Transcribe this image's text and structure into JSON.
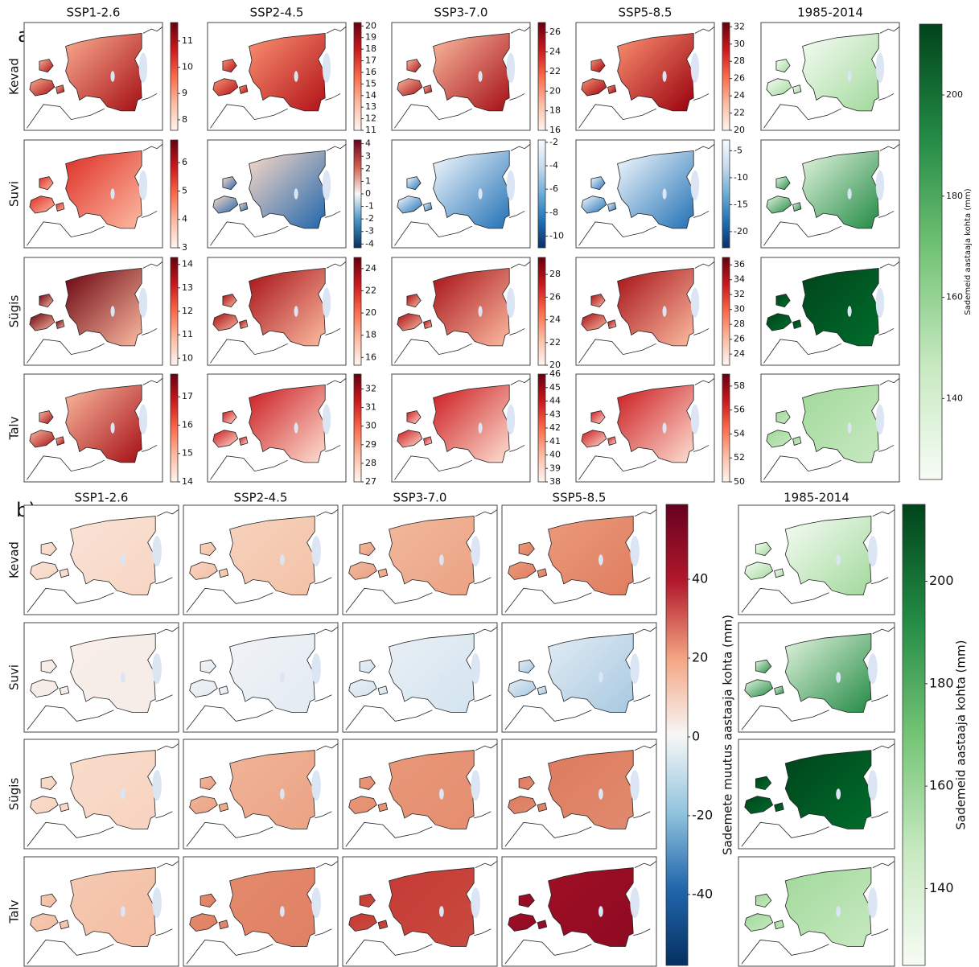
{
  "panel_a": {
    "label": "a)",
    "columns": [
      "SSP1-2.6",
      "SSP2-4.5",
      "SSP3-7.0",
      "SSP5-8.5",
      "1985-2014"
    ],
    "rows": [
      {
        "label": "Kevad",
        "maps": [
          {
            "fill": [
              "#fcae91",
              "#a50f15"
            ],
            "colorbar": {
              "lim": [
                7.6,
                11.7
              ],
              "ticks": [
                8,
                9,
                10,
                11
              ],
              "colors": [
                "#fff5f0",
                "#fcbba1",
                "#fb6a4a",
                "#cb181d",
                "#67000d"
              ]
            }
          },
          {
            "fill": [
              "#fc9272",
              "#b11218"
            ],
            "colorbar": {
              "lim": [
                11,
                20.3
              ],
              "ticks": [
                11,
                12,
                13,
                14,
                15,
                16,
                17,
                18,
                19,
                20
              ],
              "colors": [
                "#fff5f0",
                "#fcbba1",
                "#fb6a4a",
                "#cb181d",
                "#67000d"
              ]
            }
          },
          {
            "fill": [
              "#fcbba1",
              "#a50f15"
            ],
            "colorbar": {
              "lim": [
                16,
                27
              ],
              "ticks": [
                16,
                18,
                20,
                22,
                24,
                26
              ],
              "colors": [
                "#fff5f0",
                "#fcbba1",
                "#fb6a4a",
                "#cb181d",
                "#67000d"
              ]
            }
          },
          {
            "fill": [
              "#fc9272",
              "#99000d"
            ],
            "colorbar": {
              "lim": [
                20,
                32.5
              ],
              "ticks": [
                20,
                22,
                24,
                26,
                28,
                30,
                32
              ],
              "colors": [
                "#fff5f0",
                "#fcbba1",
                "#fb6a4a",
                "#cb181d",
                "#67000d"
              ]
            }
          },
          {
            "fill": [
              "#f7fcf5",
              "#a1d99b"
            ]
          }
        ]
      },
      {
        "label": "Suvi",
        "maps": [
          {
            "fill": [
              "#de2d26",
              "#fcbba1"
            ],
            "colorbar": {
              "lim": [
                3,
                6.8
              ],
              "ticks": [
                3,
                4,
                5,
                6
              ],
              "colors": [
                "#fff5f0",
                "#fcbba1",
                "#fb6a4a",
                "#cb181d",
                "#67000d"
              ]
            }
          },
          {
            "fill": [
              "#fddbc7",
              "#2166ac"
            ],
            "colorbar": {
              "lim": [
                -4.3,
                4.3
              ],
              "ticks": [
                -4,
                -3,
                -2,
                -1,
                0,
                1,
                2,
                3,
                4
              ],
              "colors": [
                "#053061",
                "#4393c3",
                "#f7f7f7",
                "#d6604d",
                "#67001f"
              ]
            }
          },
          {
            "fill": [
              "#f7fbff",
              "#2171b5"
            ],
            "colorbar": {
              "lim": [
                -11,
                -1.8
              ],
              "ticks": [
                -10,
                -8,
                -6,
                -4,
                -2
              ],
              "colors": [
                "#08306b",
                "#2171b5",
                "#6baed6",
                "#c6dbef",
                "#f7fbff"
              ]
            }
          },
          {
            "fill": [
              "#f7fbff",
              "#2171b5"
            ],
            "colorbar": {
              "lim": [
                -23,
                -3
              ],
              "ticks": [
                -20,
                -15,
                -10,
                -5
              ],
              "colors": [
                "#08306b",
                "#2171b5",
                "#6baed6",
                "#c6dbef",
                "#f7fbff"
              ]
            }
          },
          {
            "fill": [
              "#e5f5e0",
              "#238b45"
            ]
          }
        ]
      },
      {
        "label": "Sügis",
        "maps": [
          {
            "fill": [
              "#67000d",
              "#fcbba1"
            ],
            "colorbar": {
              "lim": [
                9.7,
                14.3
              ],
              "ticks": [
                10,
                11,
                12,
                13,
                14
              ],
              "colors": [
                "#fff5f0",
                "#fcbba1",
                "#fb6a4a",
                "#cb181d",
                "#67000d"
              ]
            }
          },
          {
            "fill": [
              "#a50f15",
              "#fcbba1"
            ],
            "colorbar": {
              "lim": [
                15.3,
                25
              ],
              "ticks": [
                16,
                18,
                20,
                22,
                24
              ],
              "colors": [
                "#fff5f0",
                "#fcbba1",
                "#fb6a4a",
                "#cb181d",
                "#67000d"
              ]
            }
          },
          {
            "fill": [
              "#a50f15",
              "#fcbba1"
            ],
            "colorbar": {
              "lim": [
                20,
                29.5
              ],
              "ticks": [
                20,
                22,
                24,
                26,
                28
              ],
              "colors": [
                "#fff5f0",
                "#fcbba1",
                "#fb6a4a",
                "#cb181d",
                "#67000d"
              ]
            }
          },
          {
            "fill": [
              "#a50f15",
              "#fcbba1"
            ],
            "colorbar": {
              "lim": [
                22.5,
                37
              ],
              "ticks": [
                24,
                26,
                28,
                30,
                32,
                34,
                36
              ],
              "colors": [
                "#fff5f0",
                "#fcbba1",
                "#fb6a4a",
                "#cb181d",
                "#67000d"
              ]
            }
          },
          {
            "fill": [
              "#00441b",
              "#006d2c"
            ]
          }
        ]
      },
      {
        "label": "Talv",
        "maps": [
          {
            "fill": [
              "#fcbba1",
              "#a50f15"
            ],
            "colorbar": {
              "lim": [
                14,
                17.8
              ],
              "ticks": [
                14,
                15,
                16,
                17
              ],
              "colors": [
                "#fff5f0",
                "#fcbba1",
                "#fb6a4a",
                "#cb181d",
                "#67000d"
              ]
            }
          },
          {
            "fill": [
              "#cb181d",
              "#fee0d2"
            ],
            "colorbar": {
              "lim": [
                27,
                32.8
              ],
              "ticks": [
                27,
                28,
                29,
                30,
                31,
                32
              ],
              "colors": [
                "#fff5f0",
                "#fcbba1",
                "#fb6a4a",
                "#cb181d",
                "#67000d"
              ]
            }
          },
          {
            "fill": [
              "#cb181d",
              "#fee0d2"
            ],
            "colorbar": {
              "lim": [
                38,
                46
              ],
              "ticks": [
                38,
                39,
                40,
                41,
                42,
                43,
                44,
                45,
                46
              ],
              "colors": [
                "#fff5f0",
                "#fcbba1",
                "#fb6a4a",
                "#cb181d",
                "#67000d"
              ]
            }
          },
          {
            "fill": [
              "#cb181d",
              "#fee0d2"
            ],
            "colorbar": {
              "lim": [
                50,
                59
              ],
              "ticks": [
                50,
                52,
                54,
                56,
                58
              ],
              "colors": [
                "#fff5f0",
                "#fcbba1",
                "#fb6a4a",
                "#cb181d",
                "#67000d"
              ]
            }
          },
          {
            "fill": [
              "#a1d99b",
              "#c7e9c0"
            ]
          }
        ]
      }
    ],
    "colorbar": {
      "label": "Sademeid aastaaja kohta (mm)",
      "lim": [
        124,
        214
      ],
      "ticks": [
        140,
        160,
        180,
        200
      ],
      "colors": [
        "#f7fcf5",
        "#c7e9c0",
        "#74c476",
        "#238b45",
        "#00441b"
      ]
    }
  },
  "panel_b": {
    "label": "b)",
    "columns": [
      "SSP1-2.6",
      "SSP2-4.5",
      "SSP3-7.0",
      "SSP5-8.5",
      "1985-2014"
    ],
    "rows": [
      {
        "label": "Kevad",
        "maps": [
          {
            "fill": [
              "#fae3d7",
              "#f7d5c2"
            ]
          },
          {
            "fill": [
              "#f7d2bd",
              "#f3c2a7"
            ]
          },
          {
            "fill": [
              "#f2b89b",
              "#eba283"
            ]
          },
          {
            "fill": [
              "#eb9a7b",
              "#e07d60"
            ]
          },
          {
            "fill": [
              "#f7fcf5",
              "#a1d99b"
            ]
          }
        ]
      },
      {
        "label": "Suvi",
        "maps": [
          {
            "fill": [
              "#faefe9",
              "#f5ece8"
            ]
          },
          {
            "fill": [
              "#f1f3f6",
              "#e2ebf3"
            ]
          },
          {
            "fill": [
              "#e9eff5",
              "#d3e4ef"
            ]
          },
          {
            "fill": [
              "#e3ecf4",
              "#a6c9e1"
            ]
          },
          {
            "fill": [
              "#e5f5e0",
              "#238b45"
            ]
          }
        ]
      },
      {
        "label": "Sügis",
        "maps": [
          {
            "fill": [
              "#f9dccb",
              "#f7d3c0"
            ]
          },
          {
            "fill": [
              "#f0b397",
              "#eba385"
            ]
          },
          {
            "fill": [
              "#e89878",
              "#e58d70"
            ]
          },
          {
            "fill": [
              "#de7b60",
              "#e08a6d"
            ]
          },
          {
            "fill": [
              "#00441b",
              "#006d2c"
            ]
          }
        ]
      },
      {
        "label": "Talv",
        "maps": [
          {
            "fill": [
              "#f6c9b1",
              "#f3bea4"
            ]
          },
          {
            "fill": [
              "#e4896b",
              "#e08064"
            ]
          },
          {
            "fill": [
              "#c53b35",
              "#c94a3f"
            ]
          },
          {
            "fill": [
              "#a00f25",
              "#8e0a22"
            ]
          },
          {
            "fill": [
              "#a1d99b",
              "#c7e9c0"
            ]
          }
        ]
      }
    ],
    "colorbar": {
      "label": "Sademete muutus aastaaja kohta (mm)",
      "lim": [
        -58,
        59
      ],
      "ticks": [
        -40,
        -20,
        0,
        20,
        40
      ],
      "colors": [
        "#053061",
        "#2166ac",
        "#92c5de",
        "#f7f7f7",
        "#f4a582",
        "#b2182b",
        "#67001f"
      ]
    },
    "colorbar_ref": {
      "label": "Sademeid aastaaja kohta (mm)",
      "lim": [
        125,
        215
      ],
      "ticks": [
        140,
        160,
        180,
        200
      ],
      "colors": [
        "#f7fcf5",
        "#c7e9c0",
        "#74c476",
        "#238b45",
        "#00441b"
      ]
    }
  }
}
